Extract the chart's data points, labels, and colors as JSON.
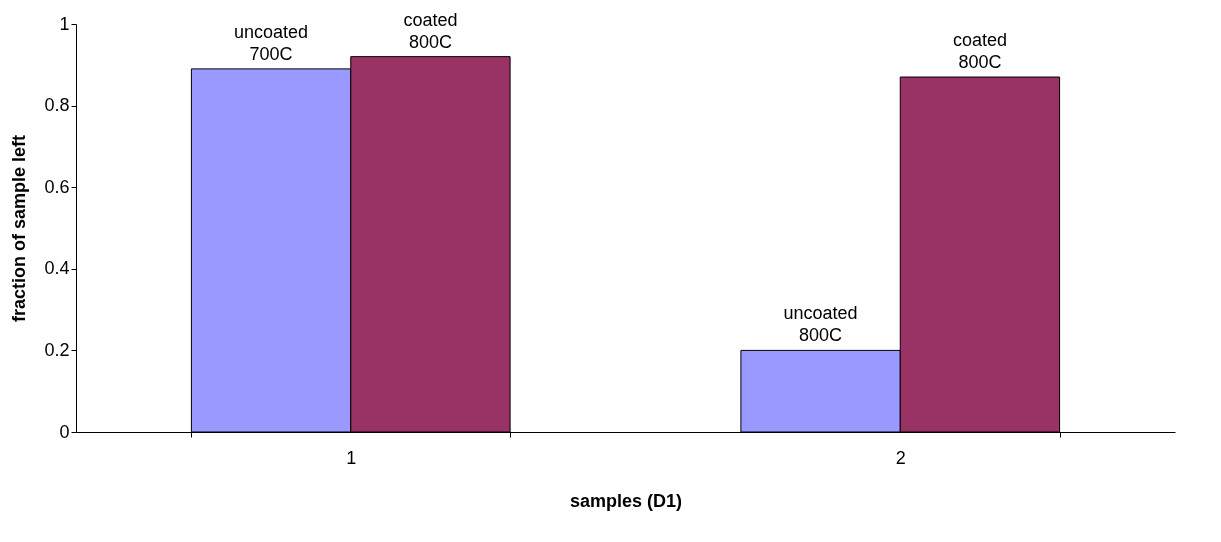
{
  "chart_data": {
    "type": "bar",
    "xlabel": "samples (D1)",
    "ylabel": "fraction of sample left",
    "categories": [
      "1",
      "2"
    ],
    "series": [
      {
        "color": "#9999ff",
        "values": [
          0.89,
          0.2
        ]
      },
      {
        "color": "#993366",
        "values": [
          0.92,
          0.87
        ]
      }
    ],
    "ylim": [
      0,
      1
    ],
    "yticks": [
      0,
      0.2,
      0.4,
      0.6,
      0.8,
      1
    ],
    "annotations": [
      {
        "text": "uncoated\n700C",
        "x": "1",
        "y": 0.89
      },
      {
        "text": "coated\n800C",
        "x": "1",
        "y": 0.92
      },
      {
        "text": "uncoated\n800C",
        "x": "2",
        "y": 0.2
      },
      {
        "text": "coated\n800C",
        "x": "2",
        "y": 0.87
      }
    ]
  }
}
